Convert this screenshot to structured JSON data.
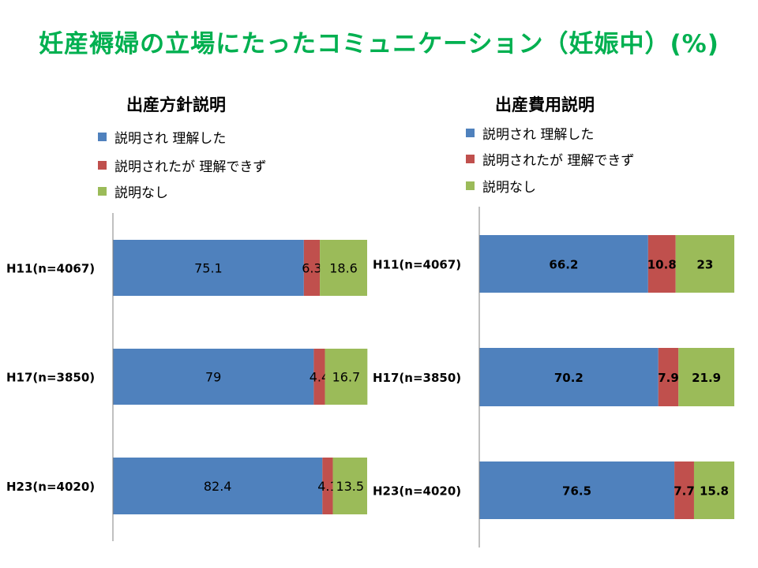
{
  "title": "妊産褥婦の立場にたったコミュニケーション（妊娠中）(%)",
  "colors": {
    "title": "#00b050",
    "blue": "#4f81bd",
    "red": "#c0504d",
    "green": "#9bbb59"
  },
  "chart_data": [
    {
      "type": "bar",
      "orientation": "horizontal",
      "stacked": true,
      "title": "出産方針説明",
      "categories": [
        "H11(n=4067)",
        "H17(n=3850)",
        "H23(n=4020)"
      ],
      "series": [
        {
          "name": "説明され 理解した",
          "color": "#4f81bd",
          "values": [
            75.1,
            79,
            82.4
          ]
        },
        {
          "name": "説明されたが 理解できず",
          "color": "#c0504d",
          "values": [
            6.3,
            4.4,
            4.1
          ]
        },
        {
          "name": "説明なし",
          "color": "#9bbb59",
          "values": [
            18.6,
            16.7,
            13.5
          ]
        }
      ],
      "xlim": [
        0,
        100
      ],
      "legend": "top-left",
      "grid": false,
      "data_labels": "normal"
    },
    {
      "type": "bar",
      "orientation": "horizontal",
      "stacked": true,
      "title": "出産費用説明",
      "categories": [
        "H11(n=4067)",
        "H17(n=3850)",
        "H23(n=4020)"
      ],
      "series": [
        {
          "name": "説明され 理解した",
          "color": "#4f81bd",
          "values": [
            66.2,
            70.2,
            76.5
          ]
        },
        {
          "name": "説明されたが 理解できず",
          "color": "#c0504d",
          "values": [
            10.8,
            7.9,
            7.7
          ]
        },
        {
          "name": "説明なし",
          "color": "#9bbb59",
          "values": [
            23,
            21.9,
            15.8
          ]
        }
      ],
      "xlim": [
        0,
        100
      ],
      "legend": "top-left",
      "grid": false,
      "data_labels": "bold"
    }
  ]
}
